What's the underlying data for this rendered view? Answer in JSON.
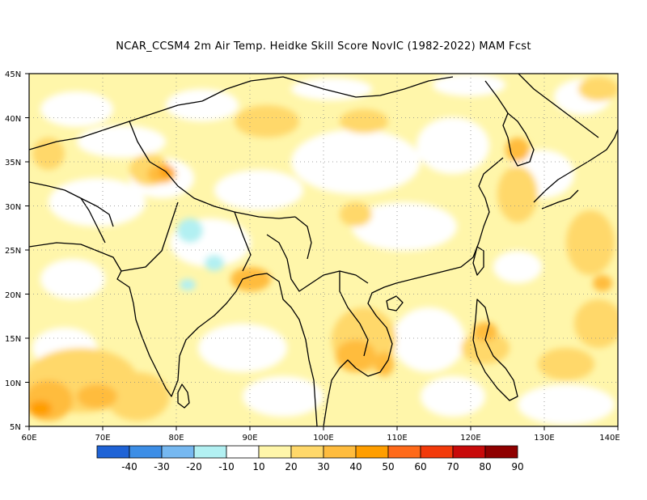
{
  "title": "NCAR_CCSM4  2m Air Temp. Heidke Skill Score NovIC (1982-2022) MAM Fcst",
  "map": {
    "lat_labels": [
      "45N",
      "40N",
      "35N",
      "30N",
      "25N",
      "20N",
      "15N",
      "10N",
      "5N"
    ],
    "lon_labels": [
      "60E",
      "70E",
      "80E",
      "90E",
      "100E",
      "110E",
      "120E",
      "130E",
      "140E"
    ],
    "lat_range": [
      5,
      45
    ],
    "lon_range": [
      60,
      140
    ],
    "gridlines": "dotted"
  },
  "colorbar": {
    "labels": [
      "-40",
      "-30",
      "-20",
      "-10",
      "10",
      "20",
      "30",
      "40",
      "50",
      "60",
      "70",
      "80",
      "90"
    ],
    "colors": [
      "#1f63d6",
      "#3d8ee6",
      "#76b8f0",
      "#b2f0f2",
      "#ffffff",
      "#fff6aa",
      "#ffd86a",
      "#ffbc3e",
      "#ff9e00",
      "#ff6a1a",
      "#f23a0a",
      "#c80a0a",
      "#8f0000"
    ]
  }
}
